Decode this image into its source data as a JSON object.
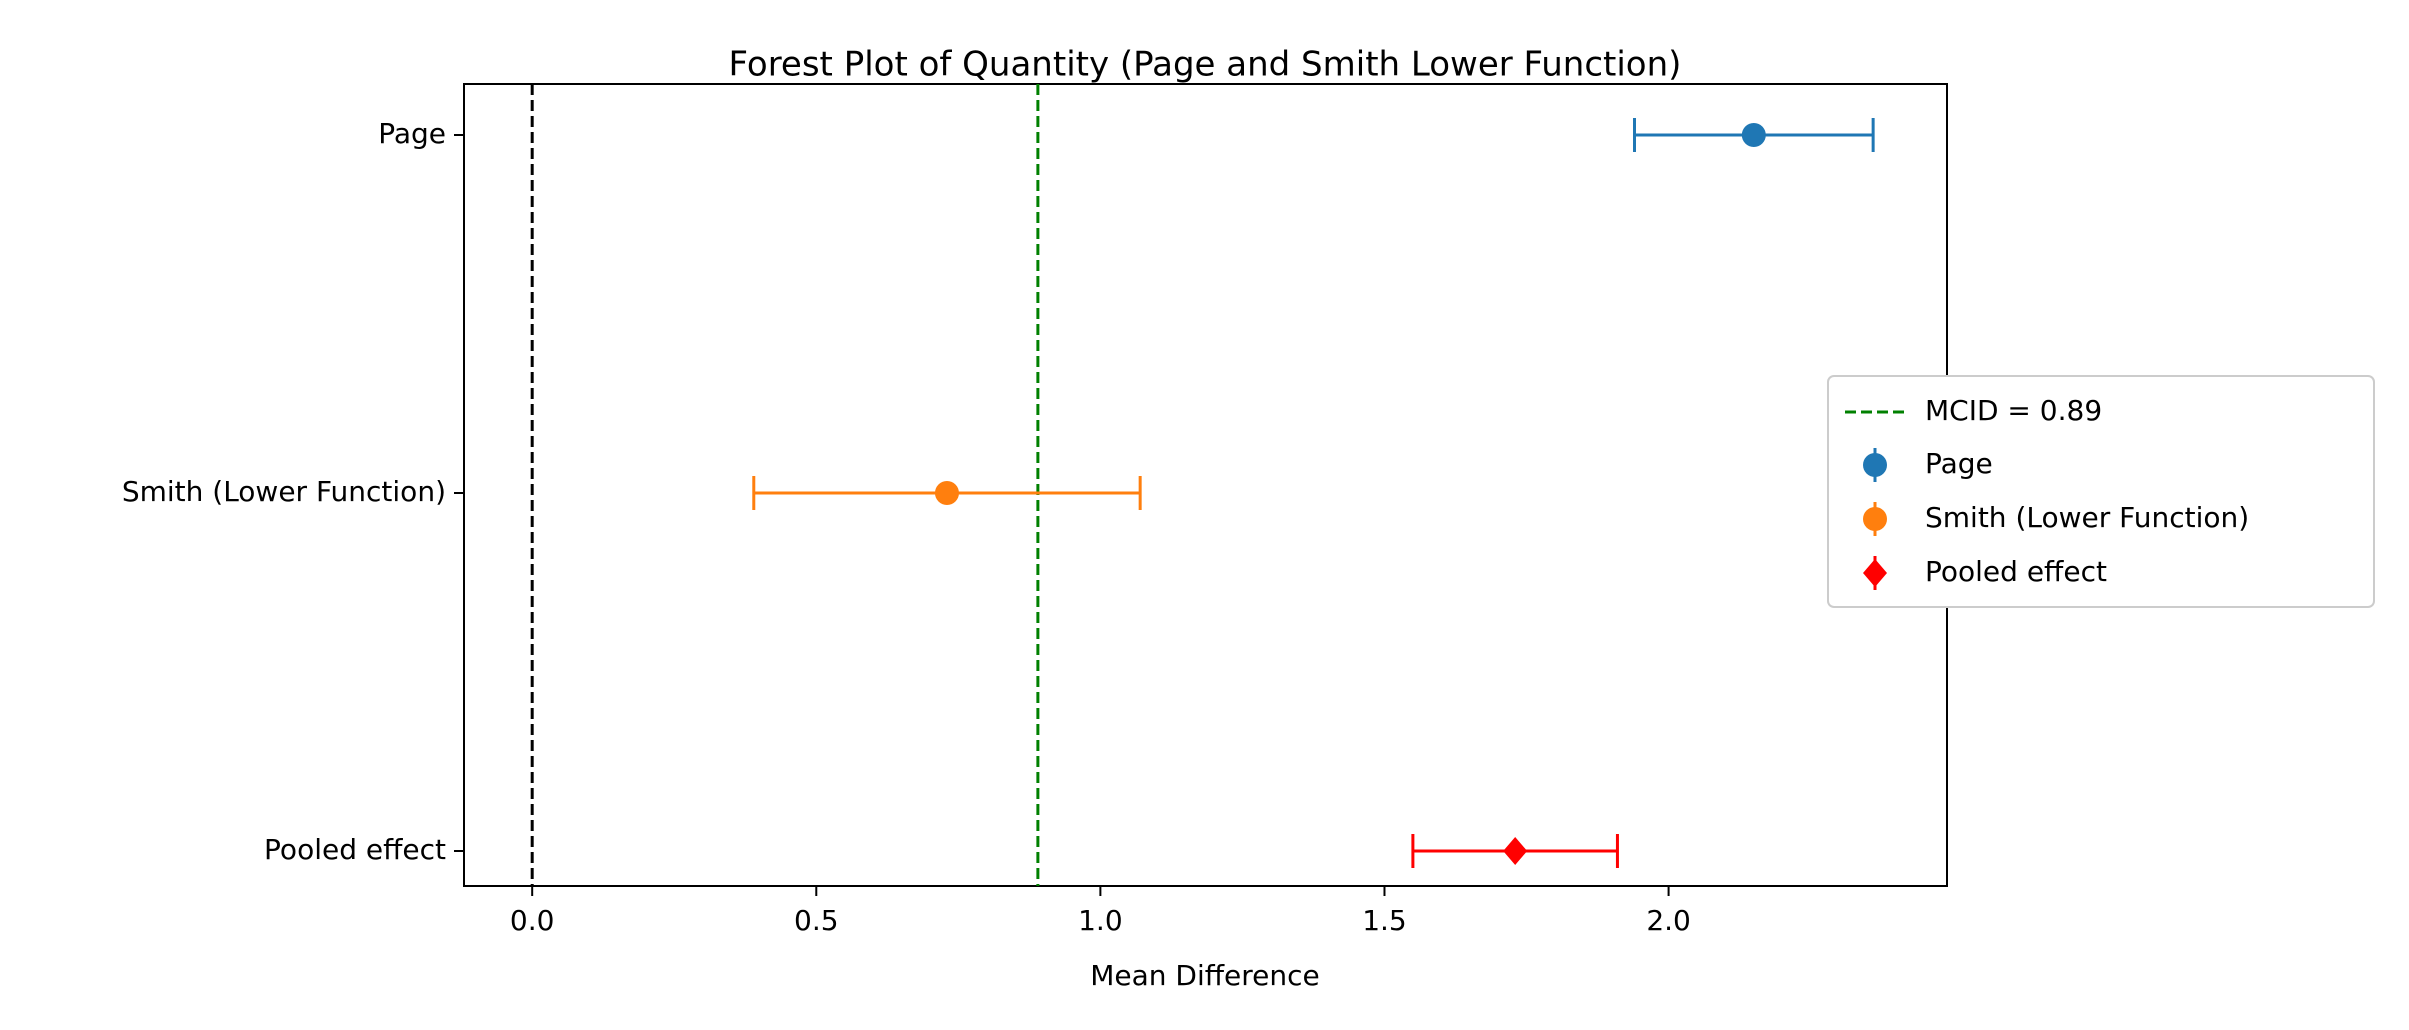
{
  "chart_data": {
    "type": "forest",
    "title": "Forest Plot of Quantity (Page and Smith Lower Function)",
    "xlabel": "Mean Difference",
    "categories": [
      "Page",
      "Smith (Lower Function)",
      "Pooled effect"
    ],
    "series": [
      {
        "name": "Page",
        "color": "#1f77b4",
        "marker": "circle",
        "value": 2.15,
        "error": 0.21
      },
      {
        "name": "Smith (Lower Function)",
        "color": "#ff7f0e",
        "marker": "circle",
        "value": 0.73,
        "error": 0.34
      },
      {
        "name": "Pooled effect",
        "color": "#ff0000",
        "marker": "diamond",
        "value": 1.73,
        "error": 0.18
      }
    ],
    "reference_lines": [
      {
        "value": 0,
        "color": "#000000"
      },
      {
        "value": 0.89,
        "color": "#008000",
        "label": "MCID = 0.89"
      }
    ],
    "xlim": [
      -0.12,
      2.49
    ],
    "xticks": [
      {
        "value": 0,
        "label": "0.0"
      },
      0.5,
      {
        "value": 1,
        "label": "1.0"
      },
      1.5,
      {
        "value": 2,
        "label": "2.0"
      }
    ],
    "legend": "center right"
  }
}
